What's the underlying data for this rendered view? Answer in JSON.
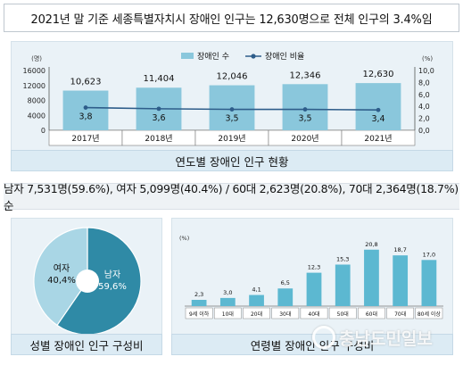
{
  "headline": "2021년 말 기준 세종특별자치시 장애인 인구는 12,630명으로 전체 인구의 3.4%임",
  "summary": "남자 7,531명(59.6%), 여자 5,099명(40.4%) / 60대 2,623명(20.8%), 70대 2,364명(18.7%) 순",
  "captions": {
    "top": "연도별 장애인 인구 현황",
    "bottom_left": "성별 장애인 인구 구성비",
    "bottom_right": "연령별 장애인 인구 구성비"
  },
  "watermark": "충남도민일보",
  "colors": {
    "bar": "#8ac7dc",
    "line": "#2e5d8a",
    "pie_male": "#2f8aa6",
    "pie_female": "#a9d6e5",
    "age_bar": "#5cb8d1"
  },
  "chart_data": [
    {
      "type": "bar",
      "categories": [
        "2017년",
        "2018년",
        "2019년",
        "2020년",
        "2021년"
      ],
      "series": [
        {
          "name": "장애인 수",
          "values": [
            10623,
            11404,
            12046,
            12346,
            12630
          ],
          "labels": [
            "10,623",
            "11,404",
            "12,046",
            "12,346",
            "12,630"
          ],
          "axis": "left"
        },
        {
          "name": "장애인 비율",
          "type": "line",
          "values": [
            3.8,
            3.6,
            3.5,
            3.5,
            3.4
          ],
          "labels": [
            "3,8",
            "3,6",
            "3,5",
            "3,5",
            "3,4"
          ],
          "axis": "right"
        }
      ],
      "left_unit": "(명)",
      "right_unit": "(%)",
      "left_ticks": [
        "0",
        "4000",
        "8000",
        "12000",
        "16000"
      ],
      "left_tick_values": [
        0,
        4000,
        8000,
        12000,
        16000
      ],
      "right_ticks": [
        "0,0",
        "2,0",
        "4,0",
        "6,0",
        "8,0",
        "10,0"
      ],
      "right_tick_values": [
        0,
        2,
        4,
        6,
        8,
        10
      ],
      "ylim_left": [
        0,
        16000
      ],
      "ylim_right": [
        0,
        10
      ],
      "legend_position": "top-center"
    },
    {
      "type": "pie",
      "slices": [
        {
          "name": "남자",
          "value": 59.6,
          "label": "59,6%"
        },
        {
          "name": "여자",
          "value": 40.4,
          "label": "40,4%"
        }
      ],
      "donut": true
    },
    {
      "type": "bar",
      "unit": "(%)",
      "categories": [
        "9세 이하",
        "10대",
        "20대",
        "30대",
        "40대",
        "50대",
        "60대",
        "70대",
        "80세 이상"
      ],
      "values": [
        2.3,
        3.0,
        4.1,
        6.5,
        12.3,
        15.3,
        20.8,
        18.7,
        17.0
      ],
      "labels": [
        "2,3",
        "3,0",
        "4,1",
        "6,5",
        "12,3",
        "15,3",
        "20,8",
        "18,7",
        "17,0"
      ],
      "ylim": [
        0,
        25
      ]
    }
  ]
}
